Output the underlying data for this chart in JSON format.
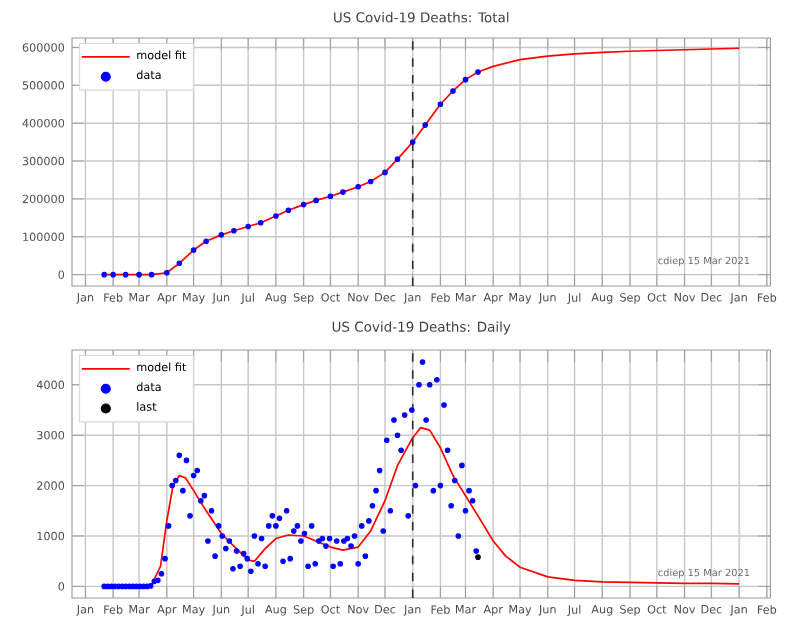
{
  "chart_data": [
    {
      "type": "line",
      "title": "US Covid-19 Deaths: Total",
      "xlim": [
        "2019-12-17",
        "2022-02-05"
      ],
      "ylim": [
        -30000,
        625000
      ],
      "xticks": [
        {
          "value": "2020-01-01",
          "label": "Jan"
        },
        {
          "value": "2020-02-01",
          "label": "Feb"
        },
        {
          "value": "2020-03-01",
          "label": "Mar"
        },
        {
          "value": "2020-04-01",
          "label": "Apr"
        },
        {
          "value": "2020-05-01",
          "label": "May"
        },
        {
          "value": "2020-06-01",
          "label": "Jun"
        },
        {
          "value": "2020-07-01",
          "label": "Jul"
        },
        {
          "value": "2020-08-01",
          "label": "Aug"
        },
        {
          "value": "2020-09-01",
          "label": "Sep"
        },
        {
          "value": "2020-10-01",
          "label": "Oct"
        },
        {
          "value": "2020-11-01",
          "label": "Nov"
        },
        {
          "value": "2020-12-01",
          "label": "Dec"
        },
        {
          "value": "2021-01-01",
          "label": "Jan"
        },
        {
          "value": "2021-02-01",
          "label": "Feb"
        },
        {
          "value": "2021-03-01",
          "label": "Mar"
        },
        {
          "value": "2021-04-01",
          "label": "Apr"
        },
        {
          "value": "2021-05-01",
          "label": "May"
        },
        {
          "value": "2021-06-01",
          "label": "Jun"
        },
        {
          "value": "2021-07-01",
          "label": "Jul"
        },
        {
          "value": "2021-08-01",
          "label": "Aug"
        },
        {
          "value": "2021-09-01",
          "label": "Sep"
        },
        {
          "value": "2021-10-01",
          "label": "Oct"
        },
        {
          "value": "2021-11-01",
          "label": "Nov"
        },
        {
          "value": "2021-12-01",
          "label": "Dec"
        },
        {
          "value": "2022-01-01",
          "label": "Jan"
        },
        {
          "value": "2022-02-01",
          "label": "Feb"
        }
      ],
      "yticks": [
        0,
        100000,
        200000,
        300000,
        400000,
        500000,
        600000
      ],
      "grid": true,
      "legend": "top left",
      "ref_lines": [
        {
          "axis": "x",
          "value": "2021-01-01",
          "color": "#333333",
          "line_style": "dashed"
        }
      ],
      "annotations": [
        "cdiep 15 Mar 2021"
      ],
      "series": [
        {
          "name": "model fit",
          "color": "#ff0000",
          "x": [
            "2020-01-22",
            "2020-02-15",
            "2020-03-15",
            "2020-04-01",
            "2020-04-15",
            "2020-05-01",
            "2020-05-15",
            "2020-06-01",
            "2020-06-15",
            "2020-07-01",
            "2020-07-15",
            "2020-08-01",
            "2020-08-15",
            "2020-09-01",
            "2020-09-15",
            "2020-10-01",
            "2020-10-15",
            "2020-11-01",
            "2020-11-15",
            "2020-12-01",
            "2020-12-15",
            "2021-01-01",
            "2021-01-15",
            "2021-02-01",
            "2021-02-15",
            "2021-03-01",
            "2021-03-15",
            "2021-04-01",
            "2021-05-01",
            "2021-06-01",
            "2021-07-01",
            "2021-08-01",
            "2021-09-01",
            "2021-10-01",
            "2021-11-01",
            "2021-12-01",
            "2022-01-01"
          ],
          "values": [
            0,
            0,
            0,
            5000,
            30000,
            65000,
            88000,
            105000,
            116000,
            127000,
            137000,
            155000,
            170000,
            185000,
            196000,
            207000,
            218000,
            232000,
            246000,
            270000,
            305000,
            350000,
            395000,
            450000,
            485000,
            515000,
            535000,
            550000,
            568000,
            577000,
            583000,
            587000,
            590000,
            592000,
            594000,
            596000,
            598000
          ]
        },
        {
          "name": "data",
          "type": "scatter",
          "color": "#0000ff",
          "x": [
            "2020-01-22",
            "2020-02-01",
            "2020-02-15",
            "2020-03-01",
            "2020-03-15",
            "2020-04-01",
            "2020-04-15",
            "2020-05-01",
            "2020-05-15",
            "2020-06-01",
            "2020-06-15",
            "2020-07-01",
            "2020-07-15",
            "2020-08-01",
            "2020-08-15",
            "2020-09-01",
            "2020-09-15",
            "2020-10-01",
            "2020-10-15",
            "2020-11-01",
            "2020-11-15",
            "2020-12-01",
            "2020-12-15",
            "2021-01-01",
            "2021-01-15",
            "2021-02-01",
            "2021-02-15",
            "2021-03-01",
            "2021-03-15"
          ],
          "values": [
            0,
            0,
            0,
            0,
            0,
            5000,
            30000,
            65000,
            88000,
            105000,
            116000,
            127000,
            137000,
            155000,
            170000,
            185000,
            196000,
            207000,
            218000,
            232000,
            246000,
            270000,
            305000,
            350000,
            395000,
            450000,
            485000,
            515000,
            535000
          ]
        }
      ]
    },
    {
      "type": "line",
      "title": "US Covid-19 Deaths: Daily",
      "xlim": [
        "2019-12-17",
        "2022-02-05"
      ],
      "ylim": [
        -230,
        4690
      ],
      "xticks": [
        {
          "value": "2020-01-01",
          "label": "Jan"
        },
        {
          "value": "2020-02-01",
          "label": "Feb"
        },
        {
          "value": "2020-03-01",
          "label": "Mar"
        },
        {
          "value": "2020-04-01",
          "label": "Apr"
        },
        {
          "value": "2020-05-01",
          "label": "May"
        },
        {
          "value": "2020-06-01",
          "label": "Jun"
        },
        {
          "value": "2020-07-01",
          "label": "Jul"
        },
        {
          "value": "2020-08-01",
          "label": "Aug"
        },
        {
          "value": "2020-09-01",
          "label": "Sep"
        },
        {
          "value": "2020-10-01",
          "label": "Oct"
        },
        {
          "value": "2020-11-01",
          "label": "Nov"
        },
        {
          "value": "2020-12-01",
          "label": "Dec"
        },
        {
          "value": "2021-01-01",
          "label": "Jan"
        },
        {
          "value": "2021-02-01",
          "label": "Feb"
        },
        {
          "value": "2021-03-01",
          "label": "Mar"
        },
        {
          "value": "2021-04-01",
          "label": "Apr"
        },
        {
          "value": "2021-05-01",
          "label": "May"
        },
        {
          "value": "2021-06-01",
          "label": "Jun"
        },
        {
          "value": "2021-07-01",
          "label": "Jul"
        },
        {
          "value": "2021-08-01",
          "label": "Aug"
        },
        {
          "value": "2021-09-01",
          "label": "Sep"
        },
        {
          "value": "2021-10-01",
          "label": "Oct"
        },
        {
          "value": "2021-11-01",
          "label": "Nov"
        },
        {
          "value": "2021-12-01",
          "label": "Dec"
        },
        {
          "value": "2022-01-01",
          "label": "Jan"
        },
        {
          "value": "2022-02-01",
          "label": "Feb"
        }
      ],
      "yticks": [
        0,
        1000,
        2000,
        3000,
        4000
      ],
      "grid": true,
      "legend": "top left",
      "ref_lines": [
        {
          "axis": "x",
          "value": "2021-01-01",
          "color": "#333333",
          "line_style": "dashed"
        }
      ],
      "annotations": [
        "cdiep 15 Mar 2021"
      ],
      "series": [
        {
          "name": "model fit",
          "color": "#ff0000",
          "x": [
            "2020-01-22",
            "2020-03-01",
            "2020-03-15",
            "2020-03-25",
            "2020-04-01",
            "2020-04-08",
            "2020-04-15",
            "2020-04-22",
            "2020-05-01",
            "2020-05-15",
            "2020-06-01",
            "2020-06-15",
            "2020-07-01",
            "2020-07-08",
            "2020-07-20",
            "2020-08-01",
            "2020-08-15",
            "2020-09-01",
            "2020-09-15",
            "2020-10-01",
            "2020-10-15",
            "2020-11-01",
            "2020-11-15",
            "2020-12-01",
            "2020-12-15",
            "2021-01-01",
            "2021-01-10",
            "2021-01-20",
            "2021-02-01",
            "2021-02-15",
            "2021-03-01",
            "2021-03-15",
            "2021-04-01",
            "2021-04-15",
            "2021-05-01",
            "2021-06-01",
            "2021-07-01",
            "2021-08-01",
            "2021-09-01",
            "2021-10-01",
            "2021-11-01",
            "2021-12-01",
            "2022-01-01"
          ],
          "values": [
            0,
            0,
            30,
            400,
            1300,
            2000,
            2200,
            2150,
            1900,
            1500,
            1050,
            800,
            520,
            500,
            750,
            950,
            1020,
            1000,
            900,
            780,
            720,
            780,
            1100,
            1700,
            2400,
            2950,
            3150,
            3100,
            2750,
            2200,
            1800,
            1400,
            900,
            600,
            380,
            190,
            120,
            90,
            80,
            70,
            60,
            60,
            50
          ]
        },
        {
          "name": "data",
          "type": "scatter",
          "color": "#0000ff",
          "x": [
            "2020-01-22",
            "2020-01-26",
            "2020-01-30",
            "2020-02-03",
            "2020-02-07",
            "2020-02-11",
            "2020-02-15",
            "2020-02-19",
            "2020-02-23",
            "2020-02-27",
            "2020-03-02",
            "2020-03-06",
            "2020-03-10",
            "2020-03-14",
            "2020-03-18",
            "2020-03-22",
            "2020-03-26",
            "2020-03-30",
            "2020-04-03",
            "2020-04-07",
            "2020-04-11",
            "2020-04-15",
            "2020-04-19",
            "2020-04-23",
            "2020-04-27",
            "2020-05-01",
            "2020-05-05",
            "2020-05-09",
            "2020-05-13",
            "2020-05-17",
            "2020-05-21",
            "2020-05-25",
            "2020-05-29",
            "2020-06-02",
            "2020-06-06",
            "2020-06-10",
            "2020-06-14",
            "2020-06-18",
            "2020-06-22",
            "2020-06-26",
            "2020-06-30",
            "2020-07-04",
            "2020-07-08",
            "2020-07-12",
            "2020-07-16",
            "2020-07-20",
            "2020-07-24",
            "2020-07-28",
            "2020-08-01",
            "2020-08-05",
            "2020-08-09",
            "2020-08-13",
            "2020-08-17",
            "2020-08-21",
            "2020-08-25",
            "2020-08-29",
            "2020-09-02",
            "2020-09-06",
            "2020-09-10",
            "2020-09-14",
            "2020-09-18",
            "2020-09-22",
            "2020-09-26",
            "2020-09-30",
            "2020-10-04",
            "2020-10-08",
            "2020-10-12",
            "2020-10-16",
            "2020-10-20",
            "2020-10-24",
            "2020-10-28",
            "2020-11-01",
            "2020-11-05",
            "2020-11-09",
            "2020-11-13",
            "2020-11-17",
            "2020-11-21",
            "2020-11-25",
            "2020-11-29",
            "2020-12-03",
            "2020-12-07",
            "2020-12-11",
            "2020-12-15",
            "2020-12-19",
            "2020-12-23",
            "2020-12-27",
            "2020-12-31",
            "2021-01-04",
            "2021-01-08",
            "2021-01-12",
            "2021-01-16",
            "2021-01-20",
            "2021-01-24",
            "2021-01-28",
            "2021-02-01",
            "2021-02-05",
            "2021-02-09",
            "2021-02-13",
            "2021-02-17",
            "2021-02-21",
            "2021-02-25",
            "2021-03-01",
            "2021-03-05",
            "2021-03-09",
            "2021-03-13"
          ],
          "values": [
            0,
            0,
            0,
            0,
            0,
            0,
            0,
            0,
            0,
            0,
            0,
            0,
            0,
            10,
            100,
            120,
            250,
            550,
            1200,
            2000,
            2100,
            2600,
            1900,
            2500,
            1400,
            2200,
            2300,
            1700,
            1800,
            900,
            1500,
            600,
            1200,
            1000,
            750,
            900,
            350,
            700,
            400,
            650,
            550,
            300,
            1000,
            450,
            950,
            400,
            1200,
            1400,
            1200,
            1350,
            500,
            1500,
            550,
            1100,
            1200,
            900,
            1050,
            400,
            1200,
            450,
            900,
            950,
            800,
            950,
            400,
            900,
            450,
            900,
            950,
            800,
            1000,
            450,
            1200,
            600,
            1300,
            1600,
            1900,
            2300,
            1100,
            2900,
            1500,
            3300,
            3000,
            2700,
            3400,
            1400,
            3500,
            2000,
            4000,
            4450,
            3300,
            4000,
            1900,
            4100,
            2000,
            3600,
            2700,
            1600,
            2100,
            1000,
            2400,
            1500,
            1900,
            1700,
            700
          ]
        },
        {
          "name": "last",
          "type": "scatter",
          "color": "#000000",
          "x": [
            "2021-03-15"
          ],
          "values": [
            580
          ]
        }
      ]
    }
  ]
}
